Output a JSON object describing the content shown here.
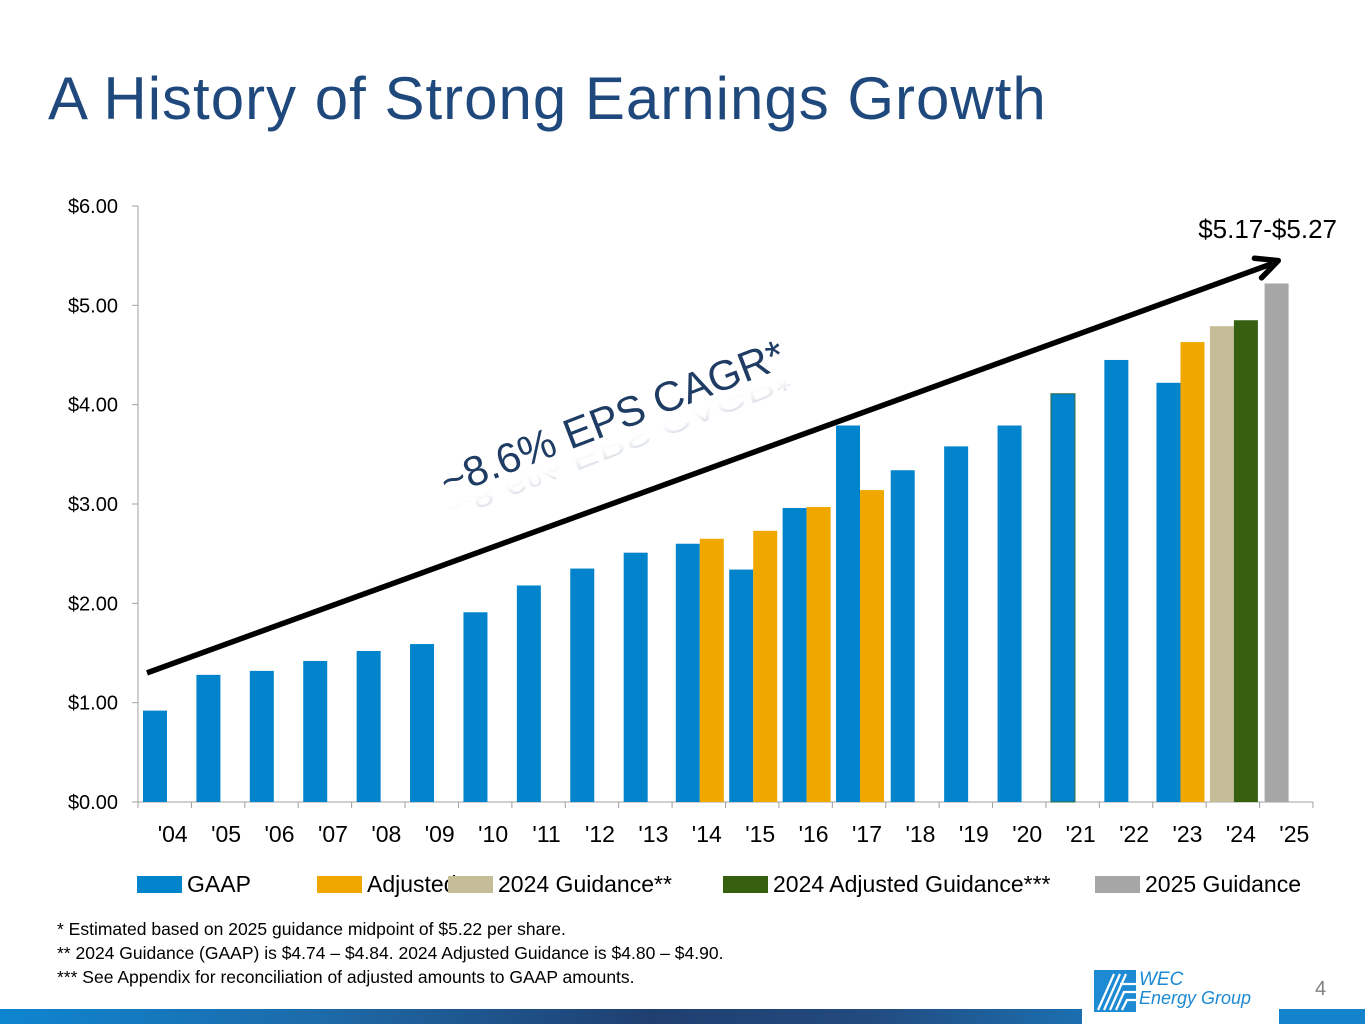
{
  "slide": {
    "title": "A History of Strong Earnings Growth",
    "page_number": "4",
    "logo": {
      "line1": "WEC",
      "line2": "Energy Group"
    },
    "footnotes": [
      "*    Estimated based on 2025 guidance midpoint of $5.22 per share.",
      "**  2024 Guidance (GAAP) is $4.74 – $4.84. 2024 Adjusted Guidance is $4.80 – $4.90.",
      "*** See Appendix for reconciliation of adjusted amounts to GAAP amounts."
    ]
  },
  "chart_data": {
    "type": "bar",
    "title": "",
    "xlabel": "",
    "ylabel": "",
    "ylim": [
      0,
      6
    ],
    "yticks": [
      "$0.00",
      "$1.00",
      "$2.00",
      "$3.00",
      "$4.00",
      "$5.00",
      "$6.00"
    ],
    "categories": [
      "'04",
      "'05",
      "'06",
      "'07",
      "'08",
      "'09",
      "'10",
      "'11",
      "'12",
      "'13",
      "'14",
      "'15",
      "'16",
      "'17",
      "'18",
      "'19",
      "'20",
      "'21",
      "'22",
      "'23",
      "'24",
      "'25"
    ],
    "grid": false,
    "legend_position": "bottom",
    "series": [
      {
        "name": "GAAP",
        "color": "#0284cc",
        "values": [
          0.92,
          1.28,
          1.32,
          1.42,
          1.52,
          1.59,
          1.91,
          2.18,
          2.35,
          2.51,
          2.6,
          2.34,
          2.96,
          3.79,
          3.34,
          3.58,
          3.79,
          4.11,
          4.45,
          4.22,
          null,
          null
        ]
      },
      {
        "name": "Adjusted***",
        "color": "#f0a800",
        "values": [
          null,
          null,
          null,
          null,
          null,
          null,
          null,
          null,
          null,
          null,
          2.65,
          2.73,
          2.97,
          3.14,
          null,
          null,
          null,
          null,
          null,
          4.63,
          null,
          null
        ]
      },
      {
        "name": "2024 Guidance**",
        "color": "#c4bd97",
        "values": [
          null,
          null,
          null,
          null,
          null,
          null,
          null,
          null,
          null,
          null,
          null,
          null,
          null,
          null,
          null,
          null,
          null,
          null,
          null,
          null,
          4.79,
          null
        ]
      },
      {
        "name": "2024 Adjusted Guidance***",
        "color": "#375f10",
        "values": [
          null,
          null,
          null,
          null,
          null,
          null,
          null,
          null,
          null,
          null,
          null,
          null,
          null,
          null,
          null,
          null,
          null,
          null,
          null,
          null,
          4.85,
          null
        ]
      },
      {
        "name": "2025 Guidance",
        "color": "#a6a6a6",
        "values": [
          null,
          null,
          null,
          null,
          null,
          null,
          null,
          null,
          null,
          null,
          null,
          null,
          null,
          null,
          null,
          null,
          null,
          null,
          null,
          null,
          null,
          5.22
        ]
      }
    ],
    "annotations": {
      "trend_label": "~8.6% EPS CAGR*",
      "trend_label_color": "#1f3c64",
      "trend_start": {
        "category": "'04",
        "value": 1.3
      },
      "trend_end": {
        "category": "'25",
        "value": 5.45
      },
      "range_label": "$5.17-$5.27"
    }
  }
}
